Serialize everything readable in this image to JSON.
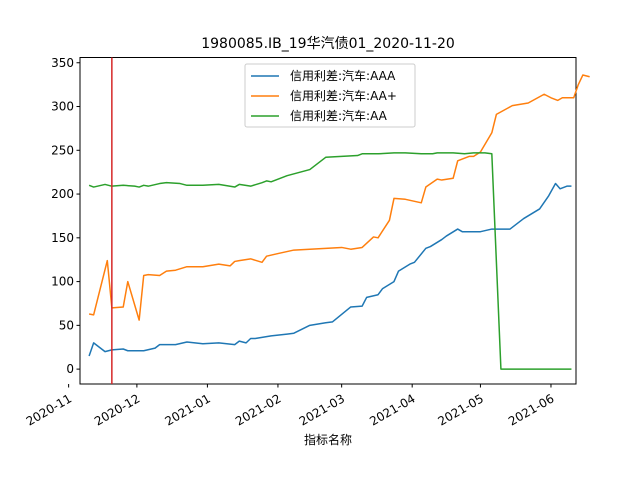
{
  "chart_data": {
    "type": "line",
    "title": "1980085.IB_19华汽债01_2020-11-20",
    "xlabel": "指标名称",
    "ylabel": "",
    "x_type": "date",
    "xlim": [
      "2020-11-06",
      "2021-06-12"
    ],
    "ylim": [
      -17,
      356
    ],
    "x_ticks": [
      "2020-11-01",
      "2020-12-01",
      "2021-01-01",
      "2021-02-01",
      "2021-03-01",
      "2021-04-01",
      "2021-05-01",
      "2021-06-01"
    ],
    "x_tick_labels": [
      "2020-11",
      "2020-12",
      "2021-01",
      "2021-02",
      "2021-03",
      "2021-04",
      "2021-05",
      "2021-06"
    ],
    "y_ticks": [
      0,
      50,
      100,
      150,
      200,
      250,
      300,
      350
    ],
    "y_tick_labels": [
      "0",
      "50",
      "100",
      "150",
      "200",
      "250",
      "300",
      "350"
    ],
    "grid": false,
    "legend_position": "top-center",
    "vline": {
      "x": "2020-11-20",
      "color": "#d62728"
    },
    "series": [
      {
        "name": "信用利差:汽车:AAA",
        "color": "#1f77b4",
        "points": [
          [
            "2020-11-10",
            15
          ],
          [
            "2020-11-12",
            30
          ],
          [
            "2020-11-17",
            20
          ],
          [
            "2020-11-20",
            22
          ],
          [
            "2020-11-25",
            23
          ],
          [
            "2020-11-27",
            21
          ],
          [
            "2020-12-04",
            21
          ],
          [
            "2020-12-09",
            24
          ],
          [
            "2020-12-11",
            28
          ],
          [
            "2020-12-18",
            28
          ],
          [
            "2020-12-23",
            31
          ],
          [
            "2020-12-30",
            29
          ],
          [
            "2021-01-06",
            30
          ],
          [
            "2021-01-13",
            28
          ],
          [
            "2021-01-15",
            32
          ],
          [
            "2021-01-18",
            30
          ],
          [
            "2021-01-20",
            35
          ],
          [
            "2021-01-22",
            35
          ],
          [
            "2021-01-29",
            38
          ],
          [
            "2021-02-05",
            40
          ],
          [
            "2021-02-08",
            41
          ],
          [
            "2021-02-15",
            50
          ],
          [
            "2021-02-22",
            53
          ],
          [
            "2021-02-25",
            54
          ],
          [
            "2021-03-05",
            71
          ],
          [
            "2021-03-10",
            72
          ],
          [
            "2021-03-12",
            82
          ],
          [
            "2021-03-17",
            85
          ],
          [
            "2021-03-19",
            92
          ],
          [
            "2021-03-24",
            100
          ],
          [
            "2021-03-26",
            112
          ],
          [
            "2021-03-31",
            120
          ],
          [
            "2021-04-02",
            122
          ],
          [
            "2021-04-07",
            138
          ],
          [
            "2021-04-09",
            140
          ],
          [
            "2021-04-14",
            148
          ],
          [
            "2021-04-16",
            152
          ],
          [
            "2021-04-21",
            160
          ],
          [
            "2021-04-23",
            157
          ],
          [
            "2021-05-01",
            157
          ],
          [
            "2021-05-06",
            160
          ],
          [
            "2021-05-14",
            160
          ],
          [
            "2021-05-20",
            172
          ],
          [
            "2021-05-27",
            183
          ],
          [
            "2021-05-31",
            198
          ],
          [
            "2021-06-03",
            212
          ],
          [
            "2021-06-05",
            206
          ],
          [
            "2021-06-08",
            209
          ],
          [
            "2021-06-10",
            209
          ]
        ]
      },
      {
        "name": "信用利差:汽车:AA+",
        "color": "#ff7f0e",
        "points": [
          [
            "2020-11-10",
            63
          ],
          [
            "2020-11-12",
            62
          ],
          [
            "2020-11-18",
            124
          ],
          [
            "2020-11-20",
            70
          ],
          [
            "2020-11-25",
            71
          ],
          [
            "2020-11-27",
            100
          ],
          [
            "2020-12-02",
            56
          ],
          [
            "2020-12-04",
            107
          ],
          [
            "2020-12-06",
            108
          ],
          [
            "2020-12-11",
            107
          ],
          [
            "2020-12-14",
            112
          ],
          [
            "2020-12-18",
            113
          ],
          [
            "2020-12-23",
            117
          ],
          [
            "2020-12-30",
            117
          ],
          [
            "2021-01-06",
            120
          ],
          [
            "2021-01-11",
            118
          ],
          [
            "2021-01-13",
            123
          ],
          [
            "2021-01-15",
            124
          ],
          [
            "2021-01-20",
            126
          ],
          [
            "2021-01-25",
            122
          ],
          [
            "2021-01-27",
            129
          ],
          [
            "2021-02-01",
            132
          ],
          [
            "2021-02-08",
            136
          ],
          [
            "2021-02-15",
            137
          ],
          [
            "2021-02-22",
            138
          ],
          [
            "2021-03-01",
            139
          ],
          [
            "2021-03-05",
            137
          ],
          [
            "2021-03-10",
            139
          ],
          [
            "2021-03-15",
            151
          ],
          [
            "2021-03-17",
            150
          ],
          [
            "2021-03-22",
            170
          ],
          [
            "2021-03-24",
            195
          ],
          [
            "2021-03-29",
            194
          ],
          [
            "2021-04-05",
            190
          ],
          [
            "2021-04-07",
            208
          ],
          [
            "2021-04-12",
            217
          ],
          [
            "2021-04-14",
            216
          ],
          [
            "2021-04-19",
            218
          ],
          [
            "2021-04-21",
            238
          ],
          [
            "2021-04-26",
            243
          ],
          [
            "2021-04-28",
            243
          ],
          [
            "2021-05-01",
            248
          ],
          [
            "2021-05-06",
            270
          ],
          [
            "2021-05-08",
            291
          ],
          [
            "2021-05-15",
            301
          ],
          [
            "2021-05-22",
            304
          ],
          [
            "2021-05-29",
            314
          ],
          [
            "2021-06-01",
            310
          ],
          [
            "2021-06-04",
            307
          ],
          [
            "2021-06-06",
            310
          ],
          [
            "2021-06-11",
            310
          ],
          [
            "2021-06-13",
            325
          ],
          [
            "2021-06-15",
            336
          ],
          [
            "2021-06-18",
            334
          ]
        ]
      },
      {
        "name": "信用利差:汽车:AA",
        "color": "#2ca02c",
        "points": [
          [
            "2020-11-10",
            210
          ],
          [
            "2020-11-12",
            208
          ],
          [
            "2020-11-17",
            211
          ],
          [
            "2020-11-20",
            209
          ],
          [
            "2020-11-25",
            210
          ],
          [
            "2020-11-30",
            209
          ],
          [
            "2020-12-02",
            208
          ],
          [
            "2020-12-04",
            210
          ],
          [
            "2020-12-06",
            209
          ],
          [
            "2020-12-11",
            212
          ],
          [
            "2020-12-14",
            213
          ],
          [
            "2020-12-20",
            212
          ],
          [
            "2020-12-23",
            210
          ],
          [
            "2020-12-30",
            210
          ],
          [
            "2021-01-06",
            211
          ],
          [
            "2021-01-13",
            208
          ],
          [
            "2021-01-15",
            211
          ],
          [
            "2021-01-20",
            209
          ],
          [
            "2021-01-25",
            213
          ],
          [
            "2021-01-27",
            215
          ],
          [
            "2021-01-29",
            214
          ],
          [
            "2021-02-05",
            221
          ],
          [
            "2021-02-15",
            228
          ],
          [
            "2021-02-22",
            242
          ],
          [
            "2021-03-01",
            243
          ],
          [
            "2021-03-08",
            244
          ],
          [
            "2021-03-10",
            246
          ],
          [
            "2021-03-17",
            246
          ],
          [
            "2021-03-24",
            247
          ],
          [
            "2021-03-29",
            247
          ],
          [
            "2021-04-05",
            246
          ],
          [
            "2021-04-07",
            246
          ],
          [
            "2021-04-10",
            246
          ],
          [
            "2021-04-12",
            247
          ],
          [
            "2021-04-19",
            247
          ],
          [
            "2021-04-24",
            246
          ],
          [
            "2021-04-28",
            247
          ],
          [
            "2021-04-30",
            247
          ],
          [
            "2021-05-03",
            247
          ],
          [
            "2021-05-06",
            246
          ],
          [
            "2021-05-10",
            0
          ],
          [
            "2021-05-17",
            0
          ],
          [
            "2021-06-01",
            0
          ],
          [
            "2021-06-10",
            0
          ]
        ]
      }
    ]
  }
}
